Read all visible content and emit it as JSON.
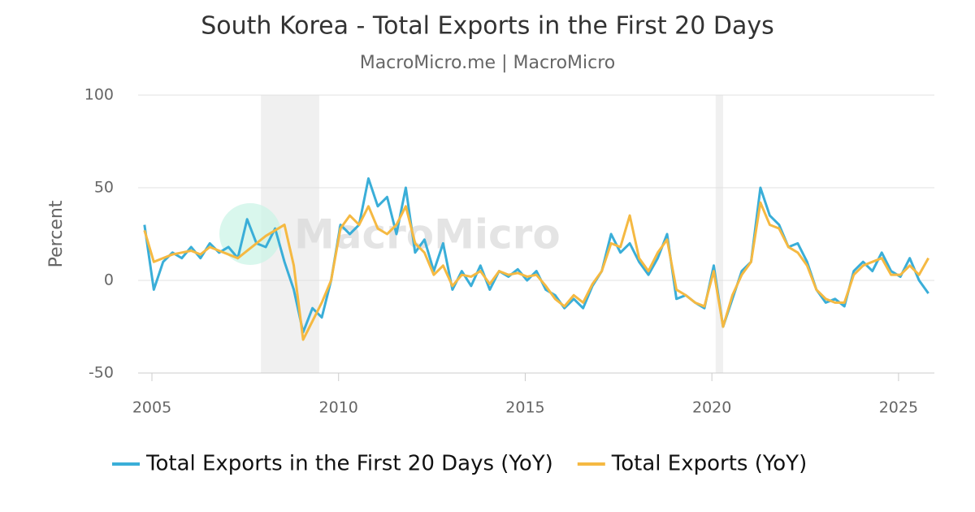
{
  "chart_data": {
    "type": "line",
    "title": "South Korea - Total Exports in the First 20 Days",
    "subtitle": "MacroMicro.me | MacroMicro",
    "watermark": "MacroMicro",
    "y_label": "Percent",
    "xlim": [
      2004.63,
      2025.96
    ],
    "ylim": [
      -50,
      100
    ],
    "xticks": [
      2005,
      2010,
      2015,
      2020,
      2025
    ],
    "yticks": [
      -50,
      0,
      50,
      100
    ],
    "grid": true,
    "legend": "bottom",
    "shaded_periods": [
      [
        2007.92,
        2009.48
      ],
      [
        2020.1,
        2020.3
      ]
    ],
    "x": [
      2004.8,
      2005.05,
      2005.3,
      2005.55,
      2005.8,
      2006.05,
      2006.3,
      2006.55,
      2006.8,
      2007.05,
      2007.3,
      2007.55,
      2007.8,
      2008.05,
      2008.3,
      2008.55,
      2008.8,
      2009.05,
      2009.3,
      2009.55,
      2009.8,
      2010.05,
      2010.3,
      2010.55,
      2010.8,
      2011.05,
      2011.3,
      2011.55,
      2011.8,
      2012.05,
      2012.3,
      2012.55,
      2012.8,
      2013.05,
      2013.3,
      2013.55,
      2013.8,
      2014.05,
      2014.3,
      2014.55,
      2014.8,
      2015.05,
      2015.3,
      2015.55,
      2015.8,
      2016.05,
      2016.3,
      2016.55,
      2016.8,
      2017.05,
      2017.3,
      2017.55,
      2017.8,
      2018.05,
      2018.3,
      2018.55,
      2018.8,
      2019.05,
      2019.3,
      2019.55,
      2019.8,
      2020.05,
      2020.3,
      2020.55,
      2020.8,
      2021.05,
      2021.3,
      2021.55,
      2021.8,
      2022.05,
      2022.3,
      2022.55,
      2022.8,
      2023.05,
      2023.3,
      2023.55,
      2023.8,
      2024.05,
      2024.3,
      2024.55,
      2024.8,
      2025.05,
      2025.3,
      2025.55,
      2025.8
    ],
    "series": [
      {
        "name": "Total Exports in the First 20 Days (YoY)",
        "color": "#3aaed8",
        "values": [
          30,
          -5,
          10,
          15,
          12,
          18,
          12,
          20,
          15,
          18,
          12,
          33,
          20,
          18,
          28,
          10,
          -5,
          -28,
          -15,
          -20,
          0,
          30,
          25,
          30,
          55,
          40,
          45,
          25,
          50,
          15,
          22,
          5,
          20,
          -5,
          5,
          -3,
          8,
          -5,
          5,
          2,
          6,
          0,
          5,
          -5,
          -8,
          -15,
          -10,
          -15,
          -3,
          5,
          25,
          15,
          20,
          10,
          3,
          12,
          25,
          -10,
          -8,
          -12,
          -15,
          8,
          -25,
          -10,
          5,
          10,
          50,
          35,
          30,
          18,
          20,
          10,
          -5,
          -12,
          -10,
          -14,
          5,
          10,
          5,
          15,
          5,
          2,
          12,
          0,
          -7
        ]
      },
      {
        "name": "Total Exports (YoY)",
        "color": "#f5b942",
        "values": [
          27,
          10,
          12,
          14,
          15,
          16,
          14,
          18,
          16,
          14,
          12,
          16,
          20,
          24,
          27,
          30,
          8,
          -32,
          -22,
          -12,
          0,
          28,
          35,
          30,
          40,
          28,
          25,
          30,
          40,
          20,
          15,
          3,
          8,
          -3,
          3,
          2,
          5,
          -2,
          5,
          3,
          4,
          2,
          3,
          -3,
          -10,
          -14,
          -8,
          -12,
          -2,
          5,
          20,
          18,
          35,
          12,
          5,
          15,
          22,
          -5,
          -8,
          -12,
          -14,
          5,
          -25,
          -8,
          3,
          10,
          42,
          30,
          28,
          18,
          15,
          8,
          -5,
          -10,
          -12,
          -12,
          3,
          8,
          10,
          12,
          3,
          3,
          8,
          3,
          12
        ]
      }
    ]
  }
}
